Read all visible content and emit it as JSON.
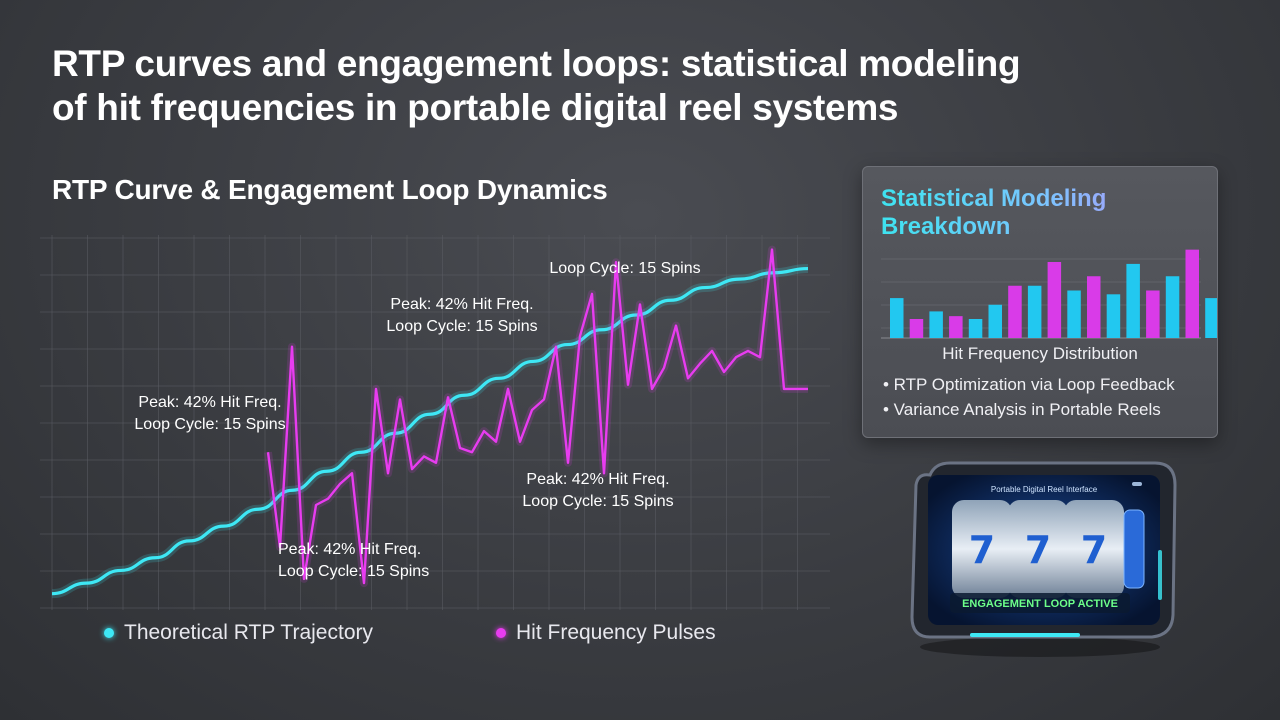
{
  "page": {
    "title_line1": "RTP curves and engagement loops: statistical modeling",
    "title_line2": "of hit frequencies in portable digital reel systems",
    "subtitle": "RTP Curve & Engagement Loop Dynamics"
  },
  "chart_data": [
    {
      "type": "line",
      "title": "RTP Curve & Engagement Loop Dynamics",
      "grid": true,
      "series": [
        {
          "name": "Theoretical RTP Trajectory",
          "color": "#3ee8f5",
          "y": [
            3,
            8,
            14,
            20,
            28,
            35,
            43,
            52,
            61,
            70,
            79,
            88,
            97,
            105,
            113,
            121,
            128,
            135,
            142,
            148,
            152,
            155,
            157
          ]
        },
        {
          "name": "Hit Frequency Pulses",
          "color": "#e83cf0",
          "y": [
            70,
            25,
            120,
            10,
            45,
            48,
            55,
            60,
            8,
            100,
            60,
            95,
            62,
            68,
            65,
            96,
            72,
            70,
            80,
            75,
            100,
            75,
            90,
            95,
            120,
            65,
            125,
            145,
            60,
            160,
            102,
            140,
            100,
            110,
            130,
            105,
            112,
            118,
            108,
            115,
            118,
            115,
            166,
            100,
            100,
            100
          ]
        }
      ],
      "annotations": [
        {
          "line1": "Peak: 42% Hit Freq.",
          "line2": "Loop Cycle: 15 Spins"
        },
        {
          "line1": "Peak: 42% Hit Freq.",
          "line2": "Loop Cycle: 15 Spins"
        },
        {
          "line1": "Peak: 42% Hit Freq.",
          "line2": "Loop Cycle: 15 Spins"
        },
        {
          "line1": "Peak: 42% Hit Freq.",
          "line2": "Loop Cycle: 15 Spins"
        },
        {
          "line1": "Loop Cycle: 15 Spins",
          "line2": ""
        }
      ]
    },
    {
      "type": "bar",
      "title": "Statistical Modeling Breakdown",
      "xlabel": "Hit Frequency Distribution",
      "series": [
        {
          "name": "cyan",
          "color": "#22c8f0",
          "values": [
            42,
            28,
            20,
            35,
            45,
            23,
            50,
            52,
            38,
            80,
            42,
            80
          ]
        },
        {
          "name": "magenta",
          "color": "#d93be8",
          "values": [
            20,
            23,
            55,
            80,
            65,
            46,
            50,
            93,
            32
          ]
        }
      ],
      "values": [
        42,
        20,
        28,
        23,
        20,
        35,
        55,
        55,
        80,
        50,
        65,
        46,
        78,
        50,
        65,
        93,
        42,
        32
      ],
      "colors": [
        "c",
        "m",
        "c",
        "m",
        "c",
        "c",
        "m",
        "c",
        "m",
        "c",
        "m",
        "c",
        "c",
        "m",
        "c",
        "m",
        "c",
        "m"
      ]
    }
  ],
  "legend": {
    "rtp_label": "Theoretical RTP Trajectory",
    "hit_label": "Hit Frequency Pulses"
  },
  "panel": {
    "title": "Statistical Modeling Breakdown",
    "caption": "Hit Frequency Distribution",
    "bullets": [
      "• RTP Optimization via Loop Feedback",
      "• Variance Analysis in Portable Reels"
    ]
  },
  "device": {
    "header": "Portable Digital Reel Interface",
    "banner": "ENGAGEMENT LOOP ACTIVE"
  },
  "colors": {
    "cyan": "#3ee8f5",
    "magenta": "#e83cf0",
    "background": "#3a3c41"
  }
}
